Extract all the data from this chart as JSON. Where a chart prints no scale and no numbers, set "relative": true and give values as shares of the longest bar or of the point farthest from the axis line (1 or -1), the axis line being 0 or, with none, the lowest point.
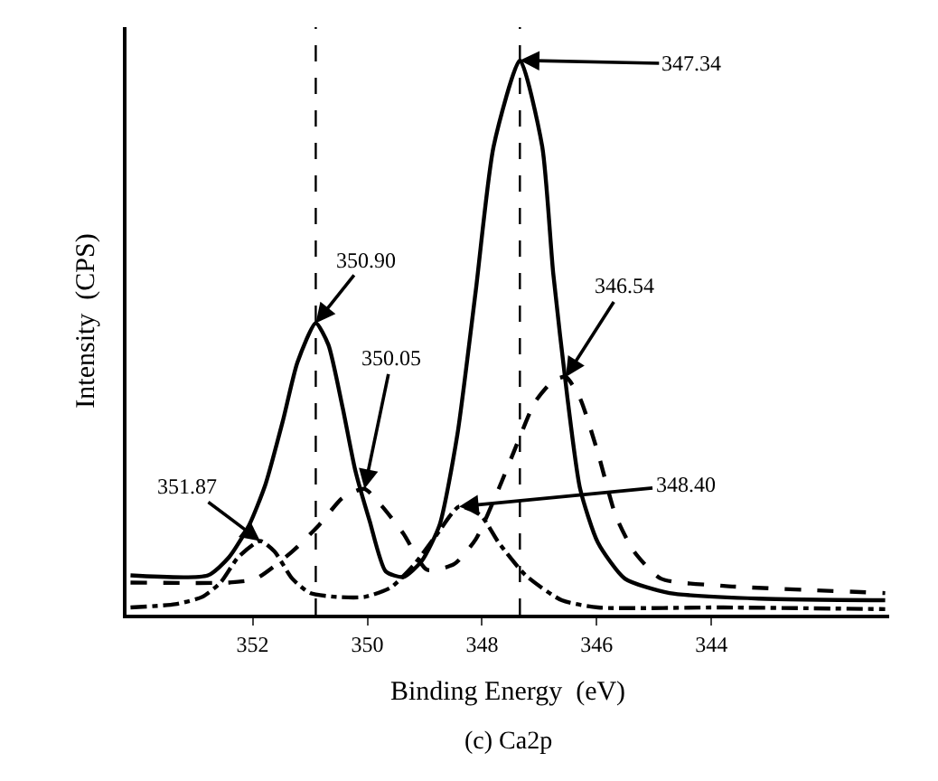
{
  "chart_data": {
    "type": "line",
    "relative": true,
    "xlabel": "Binding Energy  (eV)",
    "ylabel": "Intensity  (CPS)",
    "xlim": [
      354.2,
      340.9
    ],
    "xticks": [
      352,
      350,
      348,
      346,
      344
    ],
    "marker": "none",
    "series": [
      {
        "color": "#000000",
        "line_style": "solid",
        "x": [
          354.13,
          352.78,
          352.41,
          352.06,
          351.78,
          351.47,
          351.22,
          350.9,
          350.68,
          350.43,
          350.21,
          349.96,
          349.68,
          349.37,
          349.05,
          348.74,
          348.43,
          348.11,
          347.8,
          347.34,
          346.95,
          346.76,
          346.51,
          346.29,
          345.98,
          345.51,
          344.73,
          343.16,
          340.97
        ],
        "values": [
          0.071,
          0.071,
          0.104,
          0.162,
          0.234,
          0.351,
          0.455,
          0.526,
          0.487,
          0.373,
          0.26,
          0.169,
          0.078,
          0.068,
          0.097,
          0.162,
          0.325,
          0.584,
          0.844,
          1,
          0.844,
          0.617,
          0.39,
          0.227,
          0.13,
          0.065,
          0.039,
          0.029,
          0.026
        ]
      },
      {
        "color": "#000000",
        "line_style": "dashed",
        "x": [
          354.13,
          352.41,
          351.94,
          351.31,
          350.84,
          350.43,
          350.05,
          349.74,
          349.37,
          348.96,
          348.49,
          348.11,
          347.71,
          347.39,
          347.08,
          346.76,
          346.54,
          346.29,
          345.98,
          345.67,
          345.35,
          344.88,
          343.79,
          340.97
        ],
        "values": [
          0.058,
          0.058,
          0.065,
          0.114,
          0.162,
          0.211,
          0.227,
          0.195,
          0.146,
          0.081,
          0.091,
          0.136,
          0.227,
          0.308,
          0.383,
          0.422,
          0.429,
          0.39,
          0.292,
          0.179,
          0.114,
          0.065,
          0.052,
          0.039
        ]
      },
      {
        "color": "#000000",
        "line_style": "dashdot",
        "x": [
          354.13,
          353.35,
          352.88,
          352.56,
          352.25,
          351.87,
          351.62,
          351.31,
          351.0,
          350.53,
          350.05,
          349.59,
          349.18,
          348.8,
          348.4,
          348.02,
          347.71,
          347.24,
          346.61,
          345.98,
          343.79,
          340.97
        ],
        "values": [
          0.013,
          0.019,
          0.032,
          0.058,
          0.104,
          0.133,
          0.114,
          0.065,
          0.039,
          0.032,
          0.032,
          0.049,
          0.091,
          0.143,
          0.195,
          0.179,
          0.13,
          0.071,
          0.026,
          0.013,
          0.013,
          0.01
        ]
      }
    ],
    "ref_lines": [
      {
        "axis": "x",
        "value": 350.9,
        "line_style": "dashed",
        "color": "#000000"
      },
      {
        "axis": "x",
        "value": 347.34,
        "line_style": "dashed",
        "color": "#000000"
      }
    ],
    "annotations": [
      {
        "text": "347.34",
        "x": 347.34,
        "y": 1
      },
      {
        "text": "350.90",
        "x": 350.9,
        "y": 0.526
      },
      {
        "text": "350.05",
        "x": 350.05,
        "y": 0.227
      },
      {
        "text": "346.54",
        "x": 346.54,
        "y": 0.429
      },
      {
        "text": "351.87",
        "x": 351.87,
        "y": 0.133
      },
      {
        "text": "348.40",
        "x": 348.4,
        "y": 0.195
      },
      "(c) Ca2p"
    ]
  }
}
